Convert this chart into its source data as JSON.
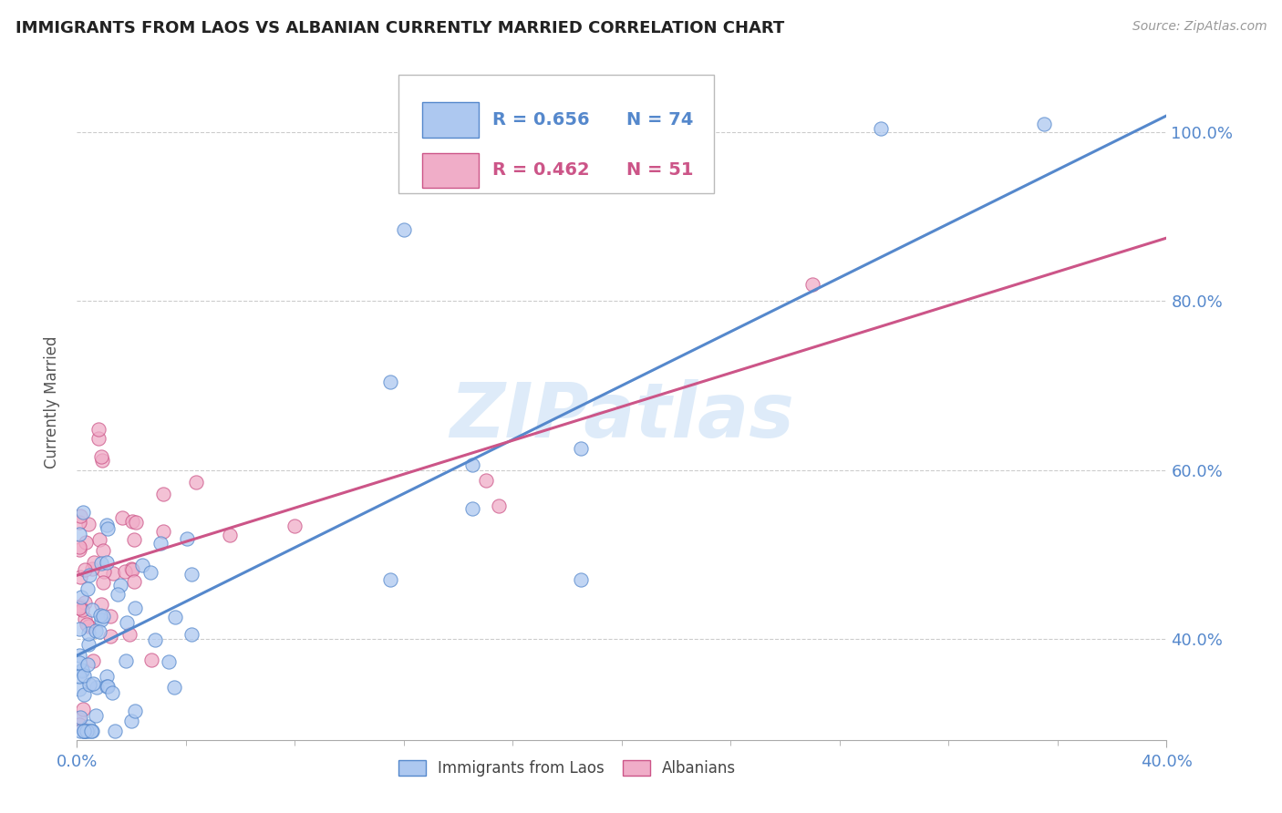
{
  "title": "IMMIGRANTS FROM LAOS VS ALBANIAN CURRENTLY MARRIED CORRELATION CHART",
  "source": "Source: ZipAtlas.com",
  "ylabel": "Currently Married",
  "legend1_label": "Immigrants from Laos",
  "legend2_label": "Albanians",
  "R1": 0.656,
  "N1": 74,
  "R2": 0.462,
  "N2": 51,
  "color1": "#adc8f0",
  "color2": "#f0adc8",
  "line_color1": "#5588cc",
  "line_color2": "#cc5588",
  "title_color": "#222222",
  "axis_label_color": "#5588cc",
  "watermark_color": "#c8dff5",
  "xlim": [
    0.0,
    0.4
  ],
  "ylim": [
    0.28,
    1.08
  ],
  "xtick_labels": [
    "0.0%",
    "40.0%"
  ],
  "xtick_positions": [
    0.0,
    0.4
  ],
  "xtick_minor": [
    0.04,
    0.08,
    0.12,
    0.16,
    0.2,
    0.24,
    0.28,
    0.32,
    0.36
  ],
  "ytick_positions": [
    0.4,
    0.6,
    0.8,
    1.0
  ],
  "ytick_labels": [
    "40.0%",
    "60.0%",
    "80.0%",
    "100.0%"
  ],
  "trendline1_x": [
    0.0,
    0.4
  ],
  "trendline1_y": [
    0.38,
    1.02
  ],
  "trendline2_x": [
    0.0,
    0.4
  ],
  "trendline2_y": [
    0.475,
    0.875
  ]
}
